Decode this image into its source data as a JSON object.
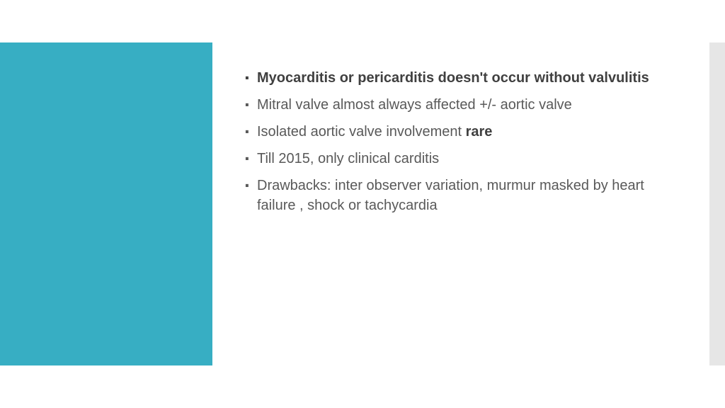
{
  "slide": {
    "background_color": "#ffffff",
    "left_accent_color": "#37aec3",
    "right_accent_color": "#e6e6e6",
    "text_color": "#595959",
    "bold_text_color": "#404040",
    "bullet_font_size": 20,
    "bullets": [
      {
        "segments": [
          {
            "text": "Myocarditis or pericarditis doesn't occur without valvulitis",
            "bold": true
          }
        ],
        "all_bold": true
      },
      {
        "segments": [
          {
            "text": "Mitral valve almost always affected +/- aortic valve",
            "bold": false
          }
        ],
        "all_bold": false
      },
      {
        "segments": [
          {
            "text": "Isolated aortic valve involvement ",
            "bold": false
          },
          {
            "text": "rare",
            "bold": true
          }
        ],
        "all_bold": false
      },
      {
        "segments": [
          {
            "text": "Till 2015, only clinical carditis",
            "bold": false
          }
        ],
        "all_bold": false
      },
      {
        "segments": [
          {
            "text": "Drawbacks: inter observer variation, murmur masked by heart failure , shock or tachycardia",
            "bold": false
          }
        ],
        "all_bold": false
      }
    ]
  }
}
